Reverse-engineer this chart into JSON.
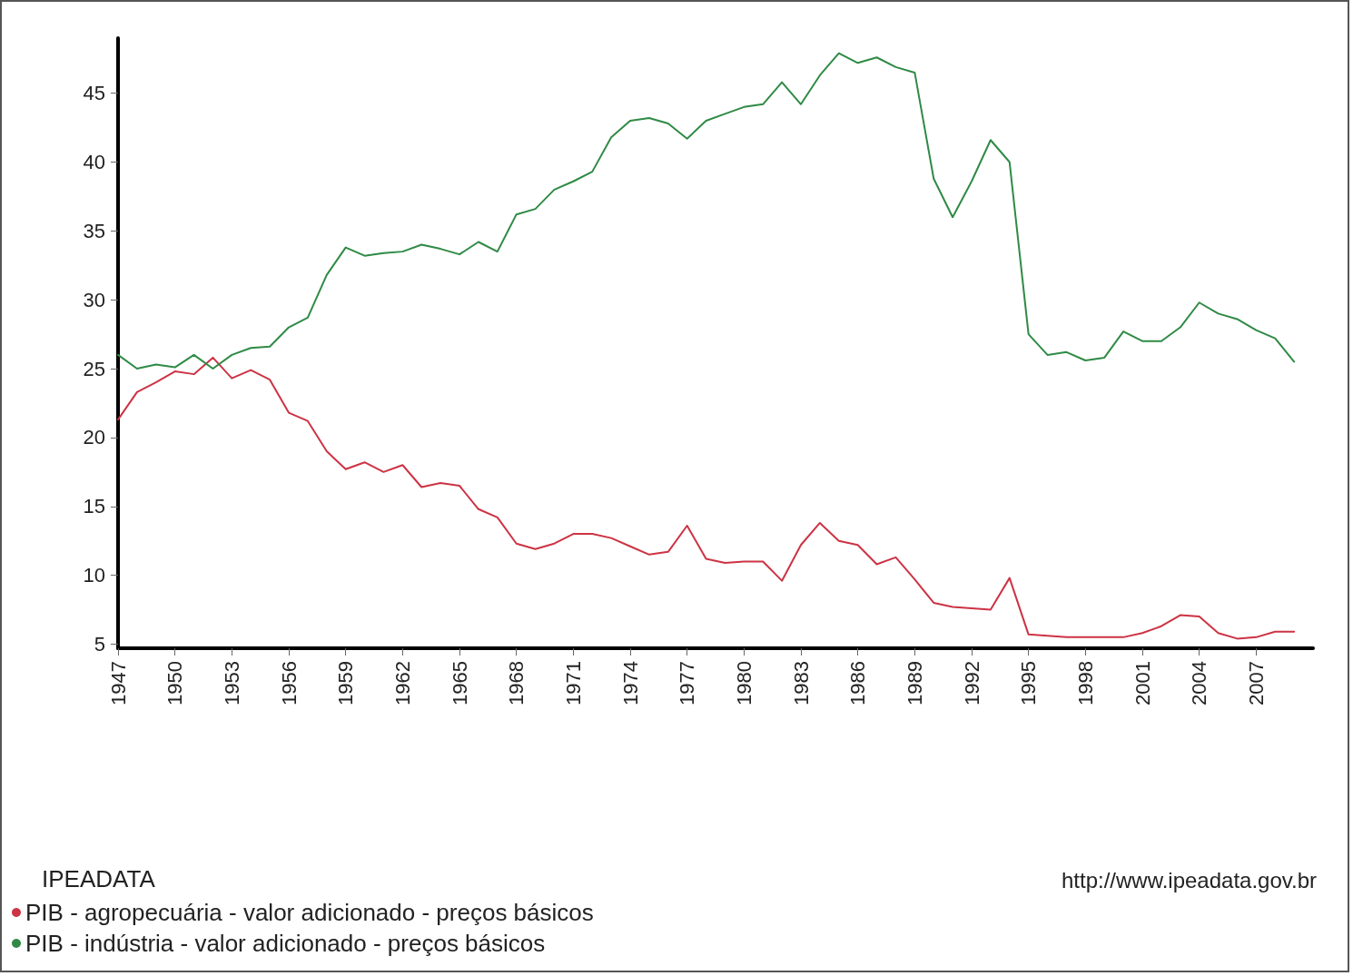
{
  "chart_data": {
    "type": "line",
    "x": [
      1947,
      1948,
      1949,
      1950,
      1951,
      1952,
      1953,
      1954,
      1955,
      1956,
      1957,
      1958,
      1959,
      1960,
      1961,
      1962,
      1963,
      1964,
      1965,
      1966,
      1967,
      1968,
      1969,
      1970,
      1971,
      1972,
      1973,
      1974,
      1975,
      1976,
      1977,
      1978,
      1979,
      1980,
      1981,
      1982,
      1983,
      1984,
      1985,
      1986,
      1987,
      1988,
      1989,
      1990,
      1991,
      1992,
      1993,
      1994,
      1995,
      1996,
      1997,
      1998,
      1999,
      2000,
      2001,
      2002,
      2003,
      2004,
      2005,
      2006,
      2007,
      2008,
      2009
    ],
    "series": [
      {
        "name": "PIB - agropecuária - valor adicionado - preços básicos",
        "color": "#cc3344",
        "values": [
          21.3,
          23.3,
          24.0,
          24.8,
          24.6,
          25.8,
          24.3,
          24.9,
          24.2,
          21.8,
          21.2,
          19.0,
          17.7,
          18.2,
          17.5,
          18.0,
          16.4,
          16.7,
          16.5,
          14.8,
          14.2,
          12.3,
          11.9,
          12.3,
          13.0,
          13.0,
          12.7,
          12.1,
          11.5,
          11.7,
          13.6,
          11.2,
          10.9,
          11.0,
          11.0,
          9.6,
          12.2,
          13.8,
          12.5,
          12.2,
          10.8,
          11.3,
          9.7,
          8.0,
          7.7,
          7.6,
          7.5,
          9.8,
          5.7,
          5.6,
          5.5,
          5.5,
          5.5,
          5.5,
          5.8,
          6.3,
          7.1,
          7.0,
          5.8,
          5.4,
          5.5,
          5.9,
          5.9
        ]
      },
      {
        "name": "PIB - indústria - valor adicionado - preços básicos",
        "color": "#2f8a45",
        "values": [
          26.0,
          25.0,
          25.3,
          25.1,
          26.0,
          25.0,
          26.0,
          26.5,
          26.6,
          28.0,
          28.7,
          31.8,
          33.8,
          33.2,
          33.4,
          33.5,
          34.0,
          33.7,
          33.3,
          34.2,
          33.5,
          36.2,
          36.6,
          38.0,
          38.6,
          39.3,
          41.8,
          43.0,
          43.2,
          42.8,
          41.7,
          43.0,
          43.5,
          44.0,
          44.2,
          45.8,
          44.2,
          46.3,
          47.9,
          47.2,
          47.6,
          46.9,
          46.5,
          38.8,
          36.0,
          38.6,
          41.6,
          40.0,
          27.5,
          26.0,
          26.2,
          25.6,
          25.8,
          27.7,
          27.0,
          27.0,
          28.0,
          29.8,
          29.0,
          28.6,
          27.8,
          27.2,
          25.5
        ]
      }
    ],
    "xlim": [
      1947,
      2010
    ],
    "xticks": [
      1947,
      1950,
      1953,
      1956,
      1959,
      1962,
      1965,
      1968,
      1971,
      1974,
      1977,
      1980,
      1983,
      1986,
      1989,
      1992,
      1995,
      1998,
      2001,
      2004,
      2007
    ],
    "ylim": [
      4.7,
      49
    ],
    "yticks": [
      5,
      10,
      15,
      20,
      25,
      30,
      35,
      40,
      45
    ],
    "grid": false,
    "legend": "bottom left",
    "marker": "none",
    "line_style": "solid",
    "annotations": [
      "IPEADATA",
      "http://www.ipeadata.gov.br"
    ]
  }
}
